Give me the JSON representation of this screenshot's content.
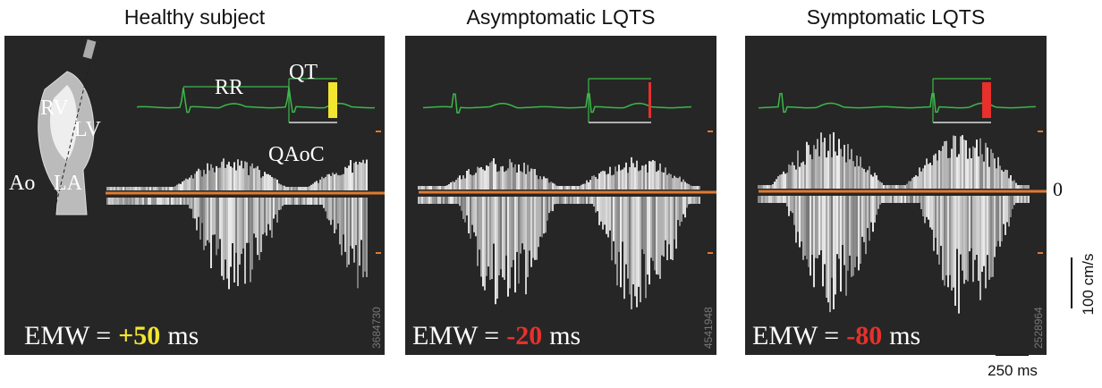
{
  "panels": [
    {
      "title": "Healthy subject",
      "emw_label": "EMW =",
      "emw_value": "+50",
      "emw_unit": "ms",
      "emw_color": "#f2e530",
      "image_id": "3684730"
    },
    {
      "title": "Asymptomatic LQTS",
      "emw_label": "EMW =",
      "emw_value": "-20",
      "emw_unit": "ms",
      "emw_color": "#e8302c",
      "image_id": "4541948"
    },
    {
      "title": "Symptomatic LQTS",
      "emw_label": "EMW =",
      "emw_value": "-80",
      "emw_unit": "ms",
      "emw_color": "#e8302c",
      "image_id": "2528964"
    }
  ],
  "annotations": {
    "rr": "RR",
    "qt": "QT",
    "qaoc": "QAoC",
    "rv": "RV",
    "lv": "LV",
    "ao": "Ao",
    "la": "LA"
  },
  "scale": {
    "zero": "0",
    "velocity": "100 cm/s",
    "time": "250 ms"
  }
}
